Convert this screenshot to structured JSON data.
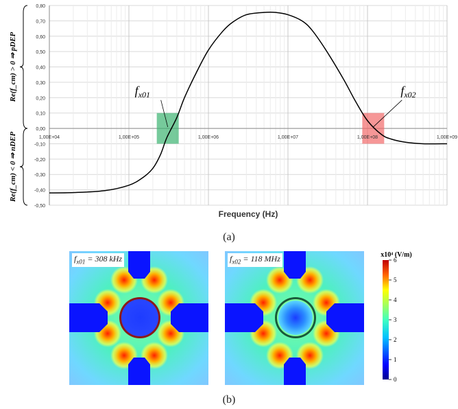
{
  "chart_data": [
    {
      "type": "line",
      "title": "",
      "xlabel": "Frequency (Hz)",
      "ylabel_positive": "Re(f_cm) > 0 ⇒ pDEP",
      "ylabel_negative": "Re(f_cm) < 0 ⇒ nDEP",
      "x_scale": "log",
      "xlim": [
        10000,
        1000000000
      ],
      "ylim": [
        -0.5,
        0.8
      ],
      "x_tick_labels": [
        "1,00E+04",
        "1,00E+05",
        "1,00E+06",
        "1,00E+07",
        "1,00E+08",
        "1,00E+09"
      ],
      "x_ticks": [
        10000,
        100000,
        1000000,
        10000000,
        100000000,
        1000000000
      ],
      "y_ticks": [
        -0.5,
        -0.4,
        -0.3,
        -0.2,
        -0.1,
        0.0,
        0.1,
        0.2,
        0.3,
        0.4,
        0.5,
        0.6,
        0.7,
        0.8
      ],
      "y_tick_labels": [
        "-0,50",
        "-0,40",
        "-0,30",
        "-0,20",
        "-0,10",
        "0,00",
        "0,10",
        "0,20",
        "0,30",
        "0,40",
        "0,50",
        "0,60",
        "0,70",
        "0,80"
      ],
      "grid": true,
      "series": [
        {
          "x": [
            10000,
            20000,
            50000,
            100000,
            150000,
            200000,
            250000,
            300000,
            400000,
            500000,
            700000,
            1000000,
            1500000,
            2000000,
            3000000,
            5000000,
            7000000,
            10000000,
            15000000,
            20000000,
            30000000,
            50000000,
            70000000,
            100000000,
            150000000,
            200000000,
            300000000,
            500000000,
            1000000000
          ],
          "y": [
            -0.42,
            -0.418,
            -0.405,
            -0.37,
            -0.32,
            -0.26,
            -0.17,
            -0.06,
            0.07,
            0.2,
            0.36,
            0.51,
            0.63,
            0.69,
            0.74,
            0.755,
            0.755,
            0.74,
            0.7,
            0.64,
            0.51,
            0.32,
            0.18,
            0.05,
            -0.04,
            -0.07,
            -0.09,
            -0.1,
            -0.1
          ],
          "color": "#000000"
        }
      ],
      "annotations": [
        {
          "label": "f_x01",
          "x": 308000,
          "y": 0.0,
          "box_color": "#3cb371"
        },
        {
          "label": "f_x02",
          "x": 118000000,
          "y": 0.0,
          "box_color": "#f26b6b"
        }
      ],
      "panel_label": "(a)"
    },
    {
      "type": "heatmap",
      "panel_label": "(b)",
      "maps": [
        {
          "label": "f_x01 = 308 kHz",
          "label_sub": "x01",
          "label_value": " = 308 kHz",
          "center_color": "#1e3cff"
        },
        {
          "label": "f_x02 = 118 MHz",
          "label_sub": "x02",
          "label_value": " = 118 MHz",
          "center_color": "#2a7cff"
        }
      ],
      "colorbar": {
        "title": "x10⁴ (V/m)",
        "range": [
          0,
          6
        ],
        "ticks": [
          0,
          1,
          2,
          3,
          4,
          5,
          6
        ],
        "tick_labels": [
          "0",
          "1",
          "2",
          "3",
          "4",
          "5",
          "6"
        ]
      }
    }
  ]
}
